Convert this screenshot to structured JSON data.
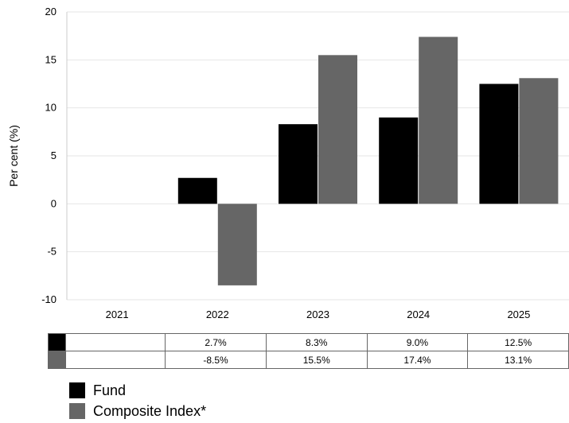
{
  "chart_data": {
    "type": "bar",
    "categories": [
      "2021",
      "2022",
      "2023",
      "2024",
      "2025"
    ],
    "series": [
      {
        "name": "Fund",
        "color": "#000000",
        "values": [
          null,
          2.7,
          8.3,
          9.0,
          12.5
        ],
        "labels": [
          "",
          "2.7%",
          "8.3%",
          "9.0%",
          "12.5%"
        ]
      },
      {
        "name": "Composite Index*",
        "color": "#666666",
        "values": [
          null,
          -8.5,
          15.5,
          17.4,
          13.1
        ],
        "labels": [
          "",
          "-8.5%",
          "15.5%",
          "17.4%",
          "13.1%"
        ]
      }
    ],
    "ylabel": "Per cent (%)",
    "ylim": [
      -10,
      20
    ],
    "yticks": [
      "20",
      "15",
      "10",
      "5",
      "0",
      "-5",
      "-10"
    ],
    "grid": true,
    "legend_placement": "bottom-left"
  }
}
